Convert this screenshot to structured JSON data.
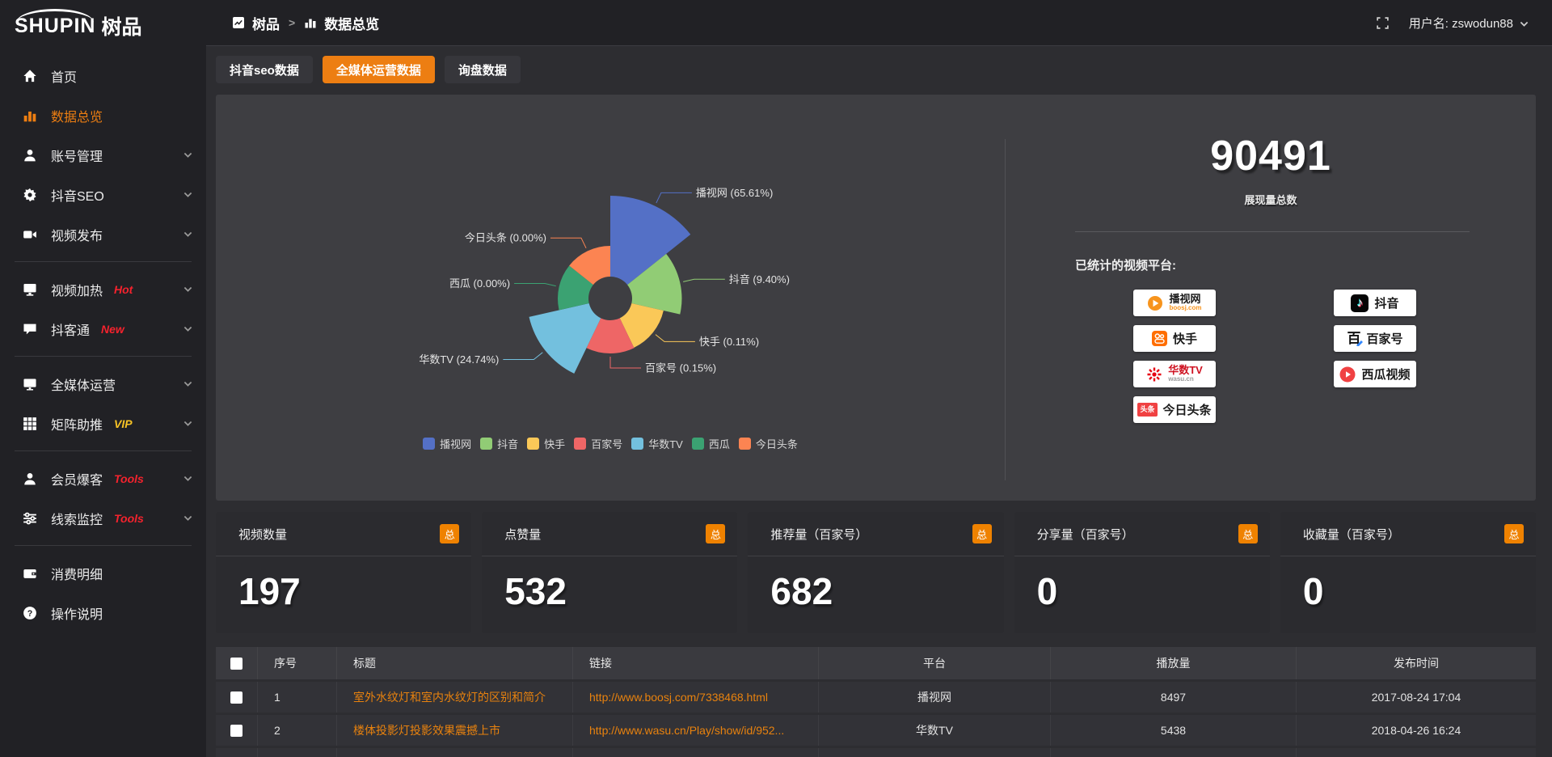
{
  "colors": {
    "accent": "#ed7e12",
    "badge_orange": "#ef8200",
    "hot_red": "#f5222d",
    "vip_yellow": "#f7c325",
    "link_orange": "#e8820e"
  },
  "topbar": {
    "logo_text": "SHUPIN",
    "logo_suffix": "树品",
    "breadcrumb": [
      {
        "icon": "app-icon",
        "label": "树品"
      },
      {
        "icon": "chart-bar-icon",
        "label": "数据总览"
      }
    ],
    "breadcrumb_separator": ">",
    "username": "用户名: zswodun88"
  },
  "sidebar": {
    "items": [
      {
        "type": "item",
        "label": "首页",
        "icon": "home-icon"
      },
      {
        "type": "item",
        "label": "数据总览",
        "icon": "chart-bar-icon",
        "active": true
      },
      {
        "type": "item",
        "label": "账号管理",
        "icon": "user-icon",
        "chevron": true
      },
      {
        "type": "item",
        "label": "抖音SEO",
        "icon": "gear-icon",
        "chevron": true
      },
      {
        "type": "item",
        "label": "视频发布",
        "icon": "video-icon",
        "chevron": true
      },
      {
        "type": "divider"
      },
      {
        "type": "item",
        "label": "视频加热",
        "icon": "screen-play-icon",
        "badge": "Hot",
        "badge_color": "#f5222d",
        "chevron": true
      },
      {
        "type": "item",
        "label": "抖客通",
        "icon": "chat-icon",
        "badge": "New",
        "badge_color": "#f5222d",
        "chevron": true
      },
      {
        "type": "divider"
      },
      {
        "type": "item",
        "label": "全媒体运营",
        "icon": "monitor-icon",
        "chevron": true
      },
      {
        "type": "item",
        "label": "矩阵助推",
        "icon": "grid-icon",
        "badge": "VIP",
        "badge_color": "#f7c325",
        "chevron": true
      },
      {
        "type": "divider"
      },
      {
        "type": "item",
        "label": "会员爆客",
        "icon": "user-icon",
        "badge": "Tools",
        "badge_color": "#f5222d",
        "chevron": true
      },
      {
        "type": "item",
        "label": "线索监控",
        "icon": "sliders-icon",
        "badge": "Tools",
        "badge_color": "#f5222d",
        "chevron": true
      },
      {
        "type": "divider"
      },
      {
        "type": "item",
        "label": "消费明细",
        "icon": "wallet-icon"
      },
      {
        "type": "item",
        "label": "操作说明",
        "icon": "help-icon"
      }
    ]
  },
  "tabs": [
    {
      "label": "抖音seo数据",
      "active": false
    },
    {
      "label": "全媒体运营数据",
      "active": true
    },
    {
      "label": "询盘数据",
      "active": false
    }
  ],
  "chart_data": {
    "type": "pie",
    "subtype": "nightingale-rose",
    "title": "",
    "legend_position": "bottom",
    "label_format": "{name} ({pct}%)",
    "items": [
      {
        "name": "播视网",
        "pct": "65.61",
        "color": "#5470c6"
      },
      {
        "name": "抖音",
        "pct": "9.40",
        "color": "#91cc75"
      },
      {
        "name": "快手",
        "pct": "0.11",
        "color": "#fac858"
      },
      {
        "name": "百家号",
        "pct": "0.15",
        "color": "#ee6666"
      },
      {
        "name": "华数TV",
        "pct": "24.74",
        "color": "#73c0de"
      },
      {
        "name": "西瓜",
        "pct": "0.00",
        "color": "#3ba272"
      },
      {
        "name": "今日头条",
        "pct": "0.00",
        "color": "#fc8452"
      }
    ]
  },
  "summary": {
    "total": "90491",
    "total_label": "展现量总数",
    "platforms_label": "已统计的视频平台:",
    "platforms_left": [
      {
        "name": "播视网",
        "sub": "boosj.com",
        "sub_color": "#f7941d",
        "logo": "boosj-logo"
      },
      {
        "name": "快手",
        "logo": "kuaishou-logo"
      },
      {
        "name": "华数TV",
        "name_color": "#cf1322",
        "sub": "wasu.cn",
        "sub_color": "#999999",
        "logo": "wasu-logo"
      },
      {
        "name": "今日头条",
        "logo": "toutiao-logo",
        "logo_text": "头条"
      }
    ],
    "platforms_right": [
      {
        "name": "抖音",
        "logo": "douyin-logo",
        "logo_text": "♪"
      },
      {
        "name": "百家号",
        "logo": "baijiahao-logo",
        "logo_text": "百"
      },
      {
        "name": "西瓜视频",
        "logo": "xigua-logo"
      }
    ]
  },
  "stat_cards": [
    {
      "title": "视频数量",
      "badge": "总",
      "value": "197"
    },
    {
      "title": "点赞量",
      "badge": "总",
      "value": "532"
    },
    {
      "title": "推荐量（百家号）",
      "badge": "总",
      "value": "682"
    },
    {
      "title": "分享量（百家号）",
      "badge": "总",
      "value": "0"
    },
    {
      "title": "收藏量（百家号）",
      "badge": "总",
      "value": "0"
    }
  ],
  "table": {
    "headers": [
      "序号",
      "标题",
      "链接",
      "平台",
      "播放量",
      "发布时间"
    ],
    "rows": [
      {
        "index": "1",
        "title": "室外水纹灯和室内水纹灯的区别和简介",
        "link": "http://www.boosj.com/7338468.html",
        "platform": "播视网",
        "plays": "8497",
        "time": "2017-08-24 17:04"
      },
      {
        "index": "2",
        "title": "楼体投影灯投影效果震撼上市",
        "link": "http://www.wasu.cn/Play/show/id/952...",
        "platform": "华数TV",
        "plays": "5438",
        "time": "2018-04-26 16:24"
      }
    ]
  }
}
